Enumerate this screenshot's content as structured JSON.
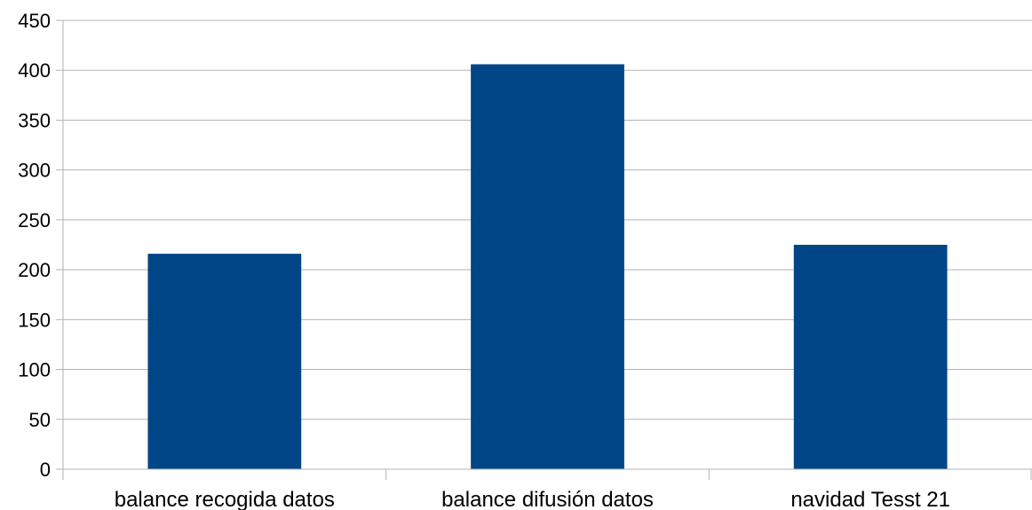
{
  "chart_data": {
    "type": "bar",
    "categories": [
      "balance recogida datos",
      "balance difusión datos",
      "navidad Tesst 21"
    ],
    "values": [
      216,
      406,
      225
    ],
    "title": "",
    "xlabel": "",
    "ylabel": "",
    "ylim": [
      0,
      450
    ],
    "yticks": [
      0,
      50,
      100,
      150,
      200,
      250,
      300,
      350,
      400,
      450
    ],
    "grid": true,
    "legend": "none",
    "bar_color": "#004586"
  }
}
